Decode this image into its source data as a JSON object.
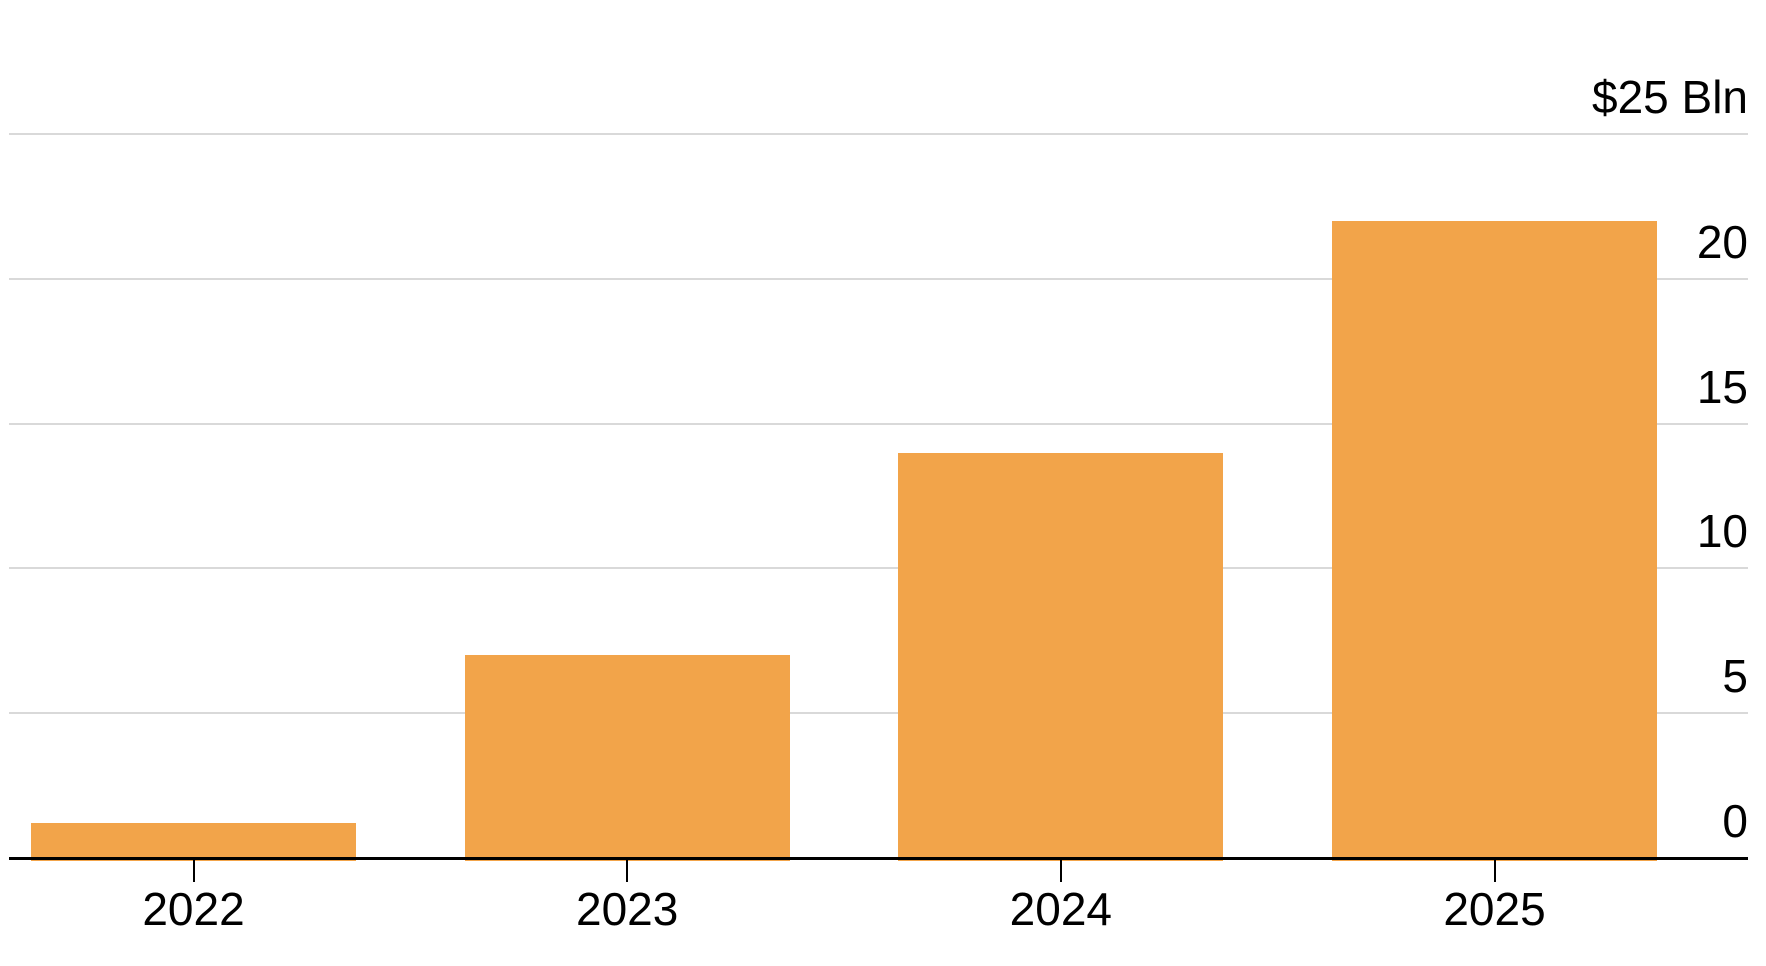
{
  "chart_data": {
    "type": "bar",
    "title": "",
    "categories": [
      "2022",
      "2023",
      "2024",
      "2025"
    ],
    "values": [
      1.2,
      7,
      14,
      22
    ],
    "y_axis": {
      "side": "right",
      "range": [
        0,
        25
      ],
      "ticks": [
        0,
        5,
        10,
        15,
        20,
        25
      ],
      "tick_labels": [
        "0",
        "5",
        "10",
        "15",
        "20",
        "$25 Bln"
      ],
      "top_tick_unit_label": "$25 Bln"
    },
    "x_axis": {
      "tick_labels": [
        "2022",
        "2023",
        "2024",
        "2025"
      ]
    },
    "grid": "horizontal",
    "legend": false,
    "colors": {
      "bar": "#F2A44A",
      "gridline": "#D9D9D9",
      "axis_line": "#000000",
      "text": "#000000",
      "background": "#FFFFFF"
    }
  }
}
